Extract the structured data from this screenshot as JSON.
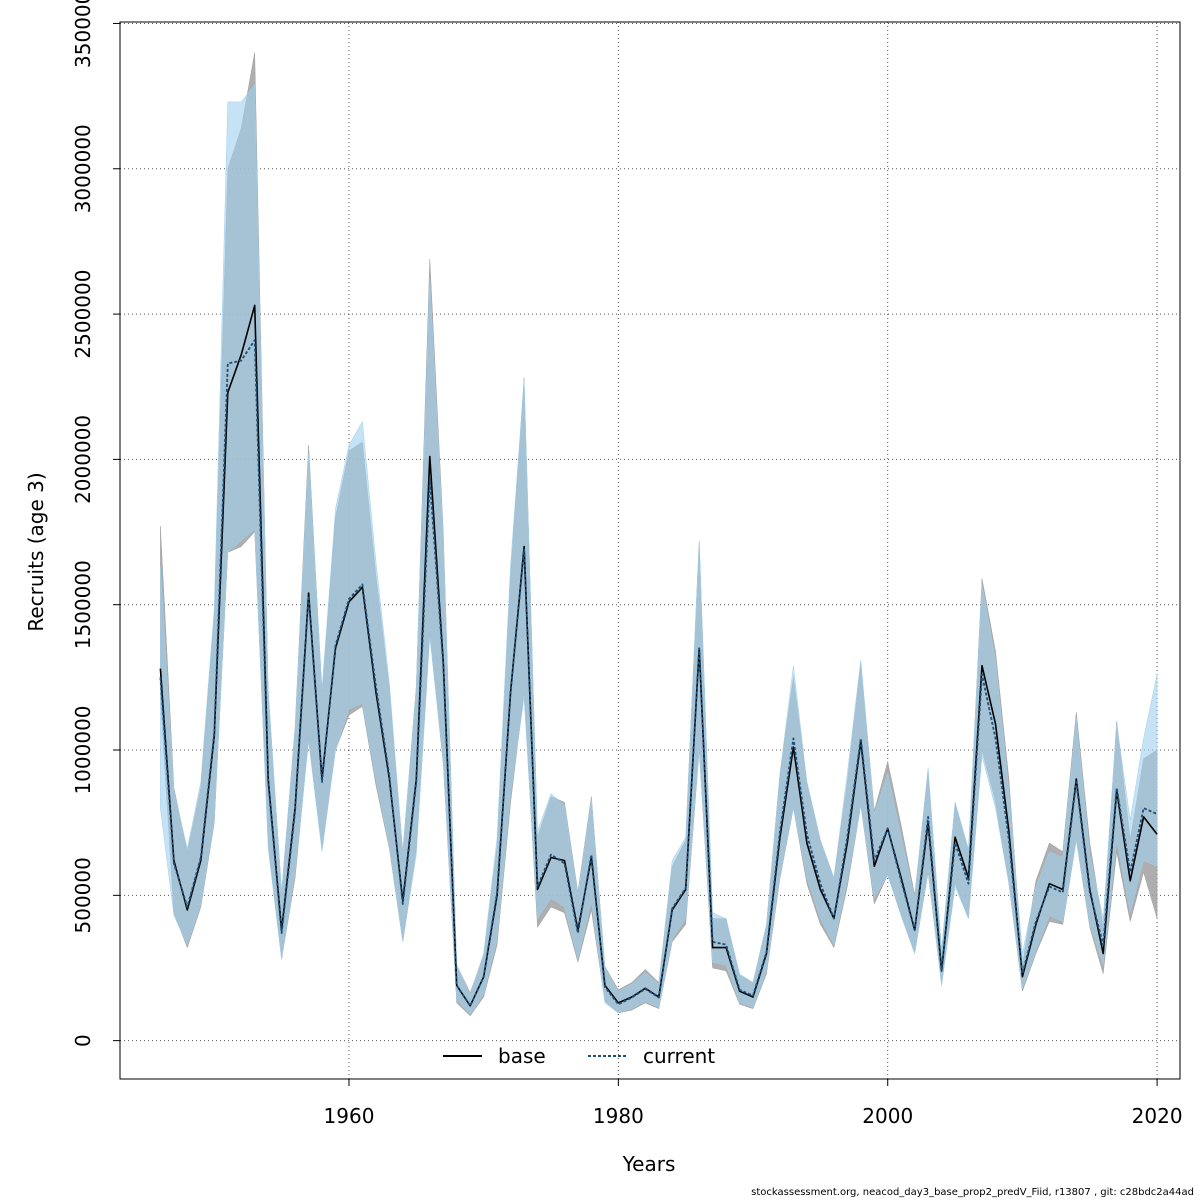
{
  "chart_data": {
    "type": "line",
    "xlabel": "Years",
    "ylabel": "Recruits (age 3)",
    "xlim": [
      1943,
      2021.7
    ],
    "ylim": [
      -132000,
      3505000
    ],
    "x_ticks": [
      1960,
      1980,
      2000,
      2020
    ],
    "y_ticks": [
      0,
      500000,
      1000000,
      1500000,
      2000000,
      2500000,
      3000000,
      3500000
    ],
    "grid": true,
    "legend_position": "bottom",
    "colors": {
      "base_line": "#000000",
      "base_band": "#a0a0a0",
      "current_line": "#1c4f7a",
      "current_band": "#9fd0ee"
    },
    "x": [
      1946,
      1947,
      1948,
      1949,
      1950,
      1951,
      1952,
      1953,
      1954,
      1955,
      1956,
      1957,
      1958,
      1959,
      1960,
      1961,
      1962,
      1963,
      1964,
      1965,
      1966,
      1967,
      1968,
      1969,
      1970,
      1971,
      1972,
      1973,
      1974,
      1975,
      1976,
      1977,
      1978,
      1979,
      1980,
      1981,
      1982,
      1983,
      1984,
      1985,
      1986,
      1987,
      1988,
      1989,
      1990,
      1991,
      1992,
      1993,
      1994,
      1995,
      1996,
      1997,
      1998,
      1999,
      2000,
      2001,
      2002,
      2003,
      2004,
      2005,
      2006,
      2007,
      2008,
      2009,
      2010,
      2011,
      2012,
      2013,
      2014,
      2015,
      2016,
      2017,
      2018,
      2019,
      2020
    ],
    "series": [
      {
        "name": "base",
        "values": [
          1280000,
          620000,
          450000,
          620000,
          1050000,
          2230000,
          2360000,
          2530000,
          900000,
          380000,
          800000,
          1540000,
          900000,
          1350000,
          1510000,
          1560000,
          1200000,
          900000,
          480000,
          900000,
          2010000,
          1300000,
          190000,
          120000,
          220000,
          500000,
          1200000,
          1700000,
          520000,
          630000,
          620000,
          380000,
          630000,
          190000,
          130000,
          150000,
          180000,
          150000,
          450000,
          520000,
          1350000,
          320000,
          320000,
          170000,
          150000,
          300000,
          700000,
          1010000,
          680000,
          520000,
          420000,
          680000,
          1030000,
          600000,
          730000,
          560000,
          380000,
          750000,
          240000,
          700000,
          560000,
          1290000,
          1090000,
          720000,
          220000,
          400000,
          540000,
          520000,
          900000,
          520000,
          300000,
          860000,
          550000,
          770000,
          710000
        ],
        "lower": [
          1180000,
          440000,
          320000,
          460000,
          750000,
          1680000,
          1700000,
          1750000,
          680000,
          280000,
          560000,
          1040000,
          660000,
          1000000,
          1120000,
          1150000,
          880000,
          660000,
          340000,
          660000,
          1400000,
          950000,
          130000,
          85000,
          150000,
          330000,
          820000,
          1200000,
          390000,
          460000,
          440000,
          270000,
          450000,
          135000,
          95000,
          105000,
          130000,
          110000,
          340000,
          400000,
          1000000,
          250000,
          240000,
          125000,
          110000,
          230000,
          560000,
          800000,
          540000,
          400000,
          320000,
          530000,
          810000,
          470000,
          570000,
          430000,
          300000,
          580000,
          190000,
          540000,
          420000,
          1000000,
          820000,
          540000,
          170000,
          300000,
          410000,
          400000,
          690000,
          390000,
          230000,
          650000,
          410000,
          580000,
          420000
        ],
        "upper": [
          1770000,
          870000,
          650000,
          870000,
          1470000,
          3000000,
          3140000,
          3400000,
          1200000,
          510000,
          1080000,
          2050000,
          1200000,
          1800000,
          2030000,
          2060000,
          1600000,
          1210000,
          650000,
          1220000,
          2690000,
          1750000,
          260000,
          165000,
          295000,
          670000,
          1600000,
          2280000,
          700000,
          840000,
          820000,
          510000,
          840000,
          255000,
          175000,
          200000,
          245000,
          200000,
          600000,
          690000,
          1720000,
          420000,
          420000,
          225000,
          200000,
          400000,
          920000,
          1250000,
          890000,
          690000,
          560000,
          890000,
          1300000,
          790000,
          960000,
          740000,
          500000,
          930000,
          310000,
          820000,
          650000,
          1590000,
          1340000,
          900000,
          260000,
          550000,
          680000,
          650000,
          1130000,
          680000,
          390000,
          1100000,
          690000,
          970000,
          1000000
        ]
      },
      {
        "name": "current",
        "values": [
          1250000,
          610000,
          460000,
          630000,
          1060000,
          2330000,
          2340000,
          2410000,
          890000,
          370000,
          790000,
          1530000,
          890000,
          1360000,
          1520000,
          1570000,
          1220000,
          910000,
          470000,
          890000,
          1930000,
          1290000,
          190000,
          120000,
          220000,
          510000,
          1200000,
          1690000,
          530000,
          640000,
          610000,
          370000,
          640000,
          185000,
          125000,
          148000,
          178000,
          148000,
          455000,
          525000,
          1350000,
          340000,
          330000,
          175000,
          155000,
          305000,
          720000,
          1040000,
          710000,
          540000,
          420000,
          700000,
          1040000,
          620000,
          730000,
          550000,
          380000,
          770000,
          240000,
          680000,
          540000,
          1260000,
          1040000,
          690000,
          230000,
          410000,
          530000,
          510000,
          890000,
          510000,
          330000,
          870000,
          580000,
          800000,
          780000
        ],
        "lower": [
          800000,
          430000,
          330000,
          470000,
          760000,
          1680000,
          1720000,
          1760000,
          660000,
          280000,
          580000,
          1030000,
          650000,
          1000000,
          1140000,
          1160000,
          900000,
          670000,
          340000,
          640000,
          1390000,
          960000,
          140000,
          90000,
          160000,
          350000,
          850000,
          1180000,
          420000,
          490000,
          460000,
          280000,
          480000,
          130000,
          95000,
          110000,
          135000,
          115000,
          350000,
          420000,
          1010000,
          270000,
          260000,
          130000,
          115000,
          240000,
          570000,
          800000,
          560000,
          420000,
          330000,
          550000,
          810000,
          490000,
          570000,
          430000,
          300000,
          590000,
          190000,
          530000,
          420000,
          980000,
          800000,
          540000,
          180000,
          310000,
          430000,
          410000,
          690000,
          400000,
          260000,
          690000,
          440000,
          620000,
          600000
        ],
        "upper": [
          1630000,
          860000,
          660000,
          890000,
          1490000,
          3230000,
          3230000,
          3290000,
          1210000,
          510000,
          1070000,
          2020000,
          1210000,
          1830000,
          2050000,
          2130000,
          1650000,
          1230000,
          640000,
          1220000,
          2620000,
          1730000,
          260000,
          160000,
          300000,
          700000,
          1640000,
          2270000,
          720000,
          850000,
          810000,
          500000,
          830000,
          250000,
          170000,
          195000,
          235000,
          195000,
          620000,
          700000,
          1720000,
          440000,
          420000,
          230000,
          200000,
          400000,
          920000,
          1290000,
          890000,
          690000,
          560000,
          920000,
          1310000,
          780000,
          920000,
          700000,
          490000,
          940000,
          310000,
          820000,
          660000,
          1570000,
          1310000,
          860000,
          300000,
          530000,
          650000,
          630000,
          1110000,
          640000,
          420000,
          1090000,
          760000,
          1040000,
          1260000
        ]
      }
    ]
  },
  "footer_text": "stockassessment.org, neacod_day3_base_prop2_predV_Fiid, r13807 , git: c28bdc2a44ad"
}
